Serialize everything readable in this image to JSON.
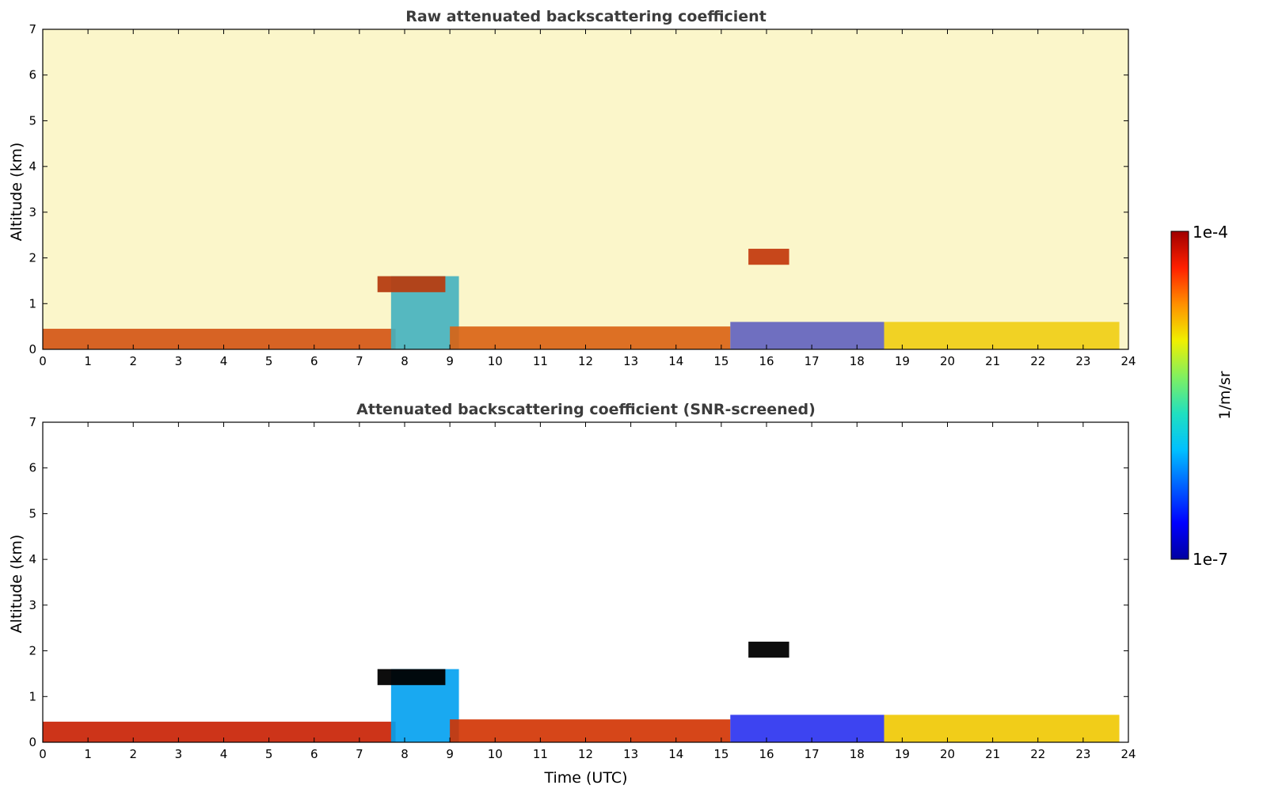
{
  "chart_data": [
    {
      "type": "heatmap",
      "title": "Raw attenuated backscattering coefficient",
      "xlabel": "",
      "ylabel": "Altitude (km)",
      "xlim": [
        0,
        24
      ],
      "ylim": [
        0,
        7
      ],
      "xticks": [
        "0",
        "1",
        "2",
        "3",
        "4",
        "5",
        "6",
        "7",
        "8",
        "9",
        "10",
        "11",
        "12",
        "13",
        "14",
        "15",
        "16",
        "17",
        "18",
        "19",
        "20",
        "21",
        "22",
        "23",
        "24"
      ],
      "yticks": [
        "0",
        "1",
        "2",
        "3",
        "4",
        "5",
        "6",
        "7"
      ],
      "features": [
        {
          "kind": "layer",
          "x_start": 0,
          "x_end": 7.8,
          "alt_top_km": 0.45,
          "color": "#c81e00"
        },
        {
          "kind": "layer",
          "x_start": 7.7,
          "x_end": 9.2,
          "alt_top_km": 1.6,
          "color": "#00a0f0"
        },
        {
          "kind": "layer",
          "x_start": 9.0,
          "x_end": 15.2,
          "alt_top_km": 0.5,
          "color": "#d23200"
        },
        {
          "kind": "layer",
          "x_start": 15.2,
          "x_end": 18.6,
          "alt_top_km": 0.6,
          "color": "#2830f0"
        },
        {
          "kind": "layer",
          "x_start": 18.6,
          "x_end": 23.8,
          "alt_top_km": 0.6,
          "color": "#f0c800"
        },
        {
          "kind": "cloud",
          "x_start": 7.4,
          "x_end": 8.9,
          "alt_top_km": 1.6,
          "color": "#a00000"
        },
        {
          "kind": "cloud",
          "x_start": 15.6,
          "x_end": 16.5,
          "alt_top_km": 2.2,
          "color": "#b40000"
        },
        {
          "kind": "noise",
          "x_start": 0,
          "x_end": 24,
          "alt_top_km": 7,
          "color": "#f0e040"
        }
      ]
    },
    {
      "type": "heatmap",
      "title": "Attenuated backscattering coefficient (SNR-screened)",
      "xlabel": "Time (UTC)",
      "ylabel": "Altitude (km)",
      "xlim": [
        0,
        24
      ],
      "ylim": [
        0,
        7
      ],
      "xticks": [
        "0",
        "1",
        "2",
        "3",
        "4",
        "5",
        "6",
        "7",
        "8",
        "9",
        "10",
        "11",
        "12",
        "13",
        "14",
        "15",
        "16",
        "17",
        "18",
        "19",
        "20",
        "21",
        "22",
        "23",
        "24"
      ],
      "yticks": [
        "0",
        "1",
        "2",
        "3",
        "4",
        "5",
        "6",
        "7"
      ],
      "features": [
        {
          "kind": "layer",
          "x_start": 0,
          "x_end": 7.8,
          "alt_top_km": 0.45,
          "color": "#c81e00"
        },
        {
          "kind": "layer",
          "x_start": 7.7,
          "x_end": 9.2,
          "alt_top_km": 1.6,
          "color": "#00a0f0"
        },
        {
          "kind": "layer",
          "x_start": 9.0,
          "x_end": 15.2,
          "alt_top_km": 0.5,
          "color": "#d23200"
        },
        {
          "kind": "layer",
          "x_start": 15.2,
          "x_end": 18.6,
          "alt_top_km": 0.6,
          "color": "#2830f0"
        },
        {
          "kind": "layer",
          "x_start": 18.6,
          "x_end": 23.8,
          "alt_top_km": 0.6,
          "color": "#f0c800"
        },
        {
          "kind": "cloud",
          "x_start": 7.4,
          "x_end": 8.9,
          "alt_top_km": 1.6,
          "color": "#000000"
        },
        {
          "kind": "cloud",
          "x_start": 15.6,
          "x_end": 16.5,
          "alt_top_km": 2.2,
          "color": "#000000"
        }
      ]
    }
  ],
  "colorbar": {
    "label": "1/m/sr",
    "max_label": "1e-4",
    "min_label": "1e-7",
    "colors": [
      "#0000a0",
      "#0000ff",
      "#0060ff",
      "#00c0ff",
      "#20e0c0",
      "#80f060",
      "#f0f000",
      "#ff9000",
      "#ff2000",
      "#a00000"
    ]
  }
}
